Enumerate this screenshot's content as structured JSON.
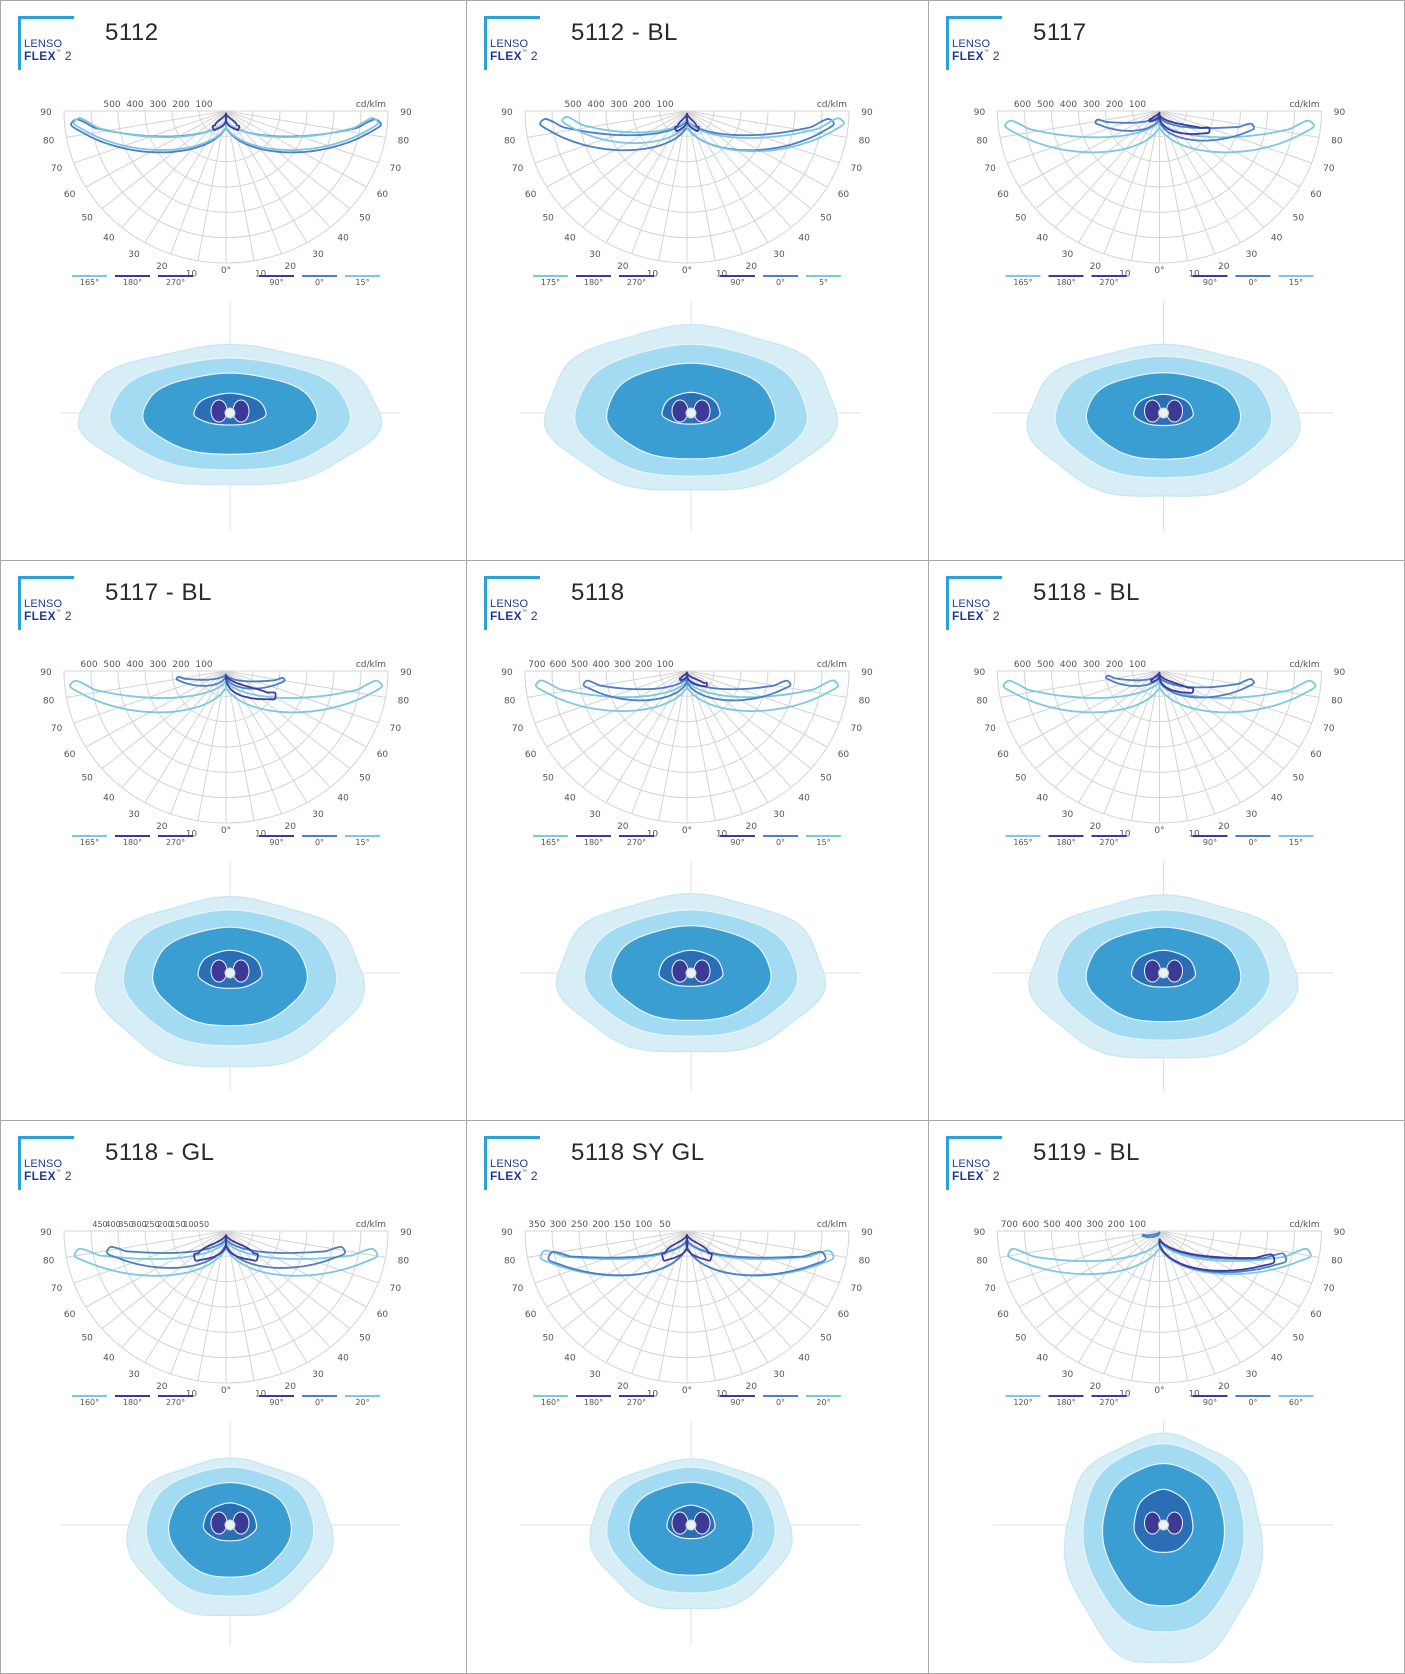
{
  "logo": {
    "line1": "LENSO",
    "line2": "FLEX",
    "tm": "™",
    "suffix": "2"
  },
  "colors": {
    "grid": "#d4d4d4",
    "label": "#555555",
    "light": "#7cc8e2",
    "mid": "#4a7fc4",
    "dark": "#3d3a9e",
    "iso_outer": "#d7eef7",
    "iso_2": "#a3dcf2",
    "iso_3": "#3a9ed3",
    "iso_4": "#2a6fb5",
    "iso_5": "#3c3a95"
  },
  "common": {
    "unit": "cd/klm",
    "angle_left": [
      "90",
      "80",
      "70",
      "60",
      "50",
      "40",
      "30",
      "20",
      "10"
    ],
    "angle_right": [
      "90",
      "80",
      "70",
      "60",
      "50",
      "40",
      "30",
      "20",
      "10"
    ],
    "zero": "0°"
  },
  "cells": [
    {
      "title": "5112",
      "intensity": [
        "500",
        "400",
        "300",
        "200",
        "100"
      ],
      "planes": [
        "165°",
        "180°",
        "270°",
        "90°",
        "0°",
        "15°"
      ]
    },
    {
      "title": "5112 - BL",
      "intensity": [
        "500",
        "400",
        "300",
        "200",
        "100"
      ],
      "planes": [
        "175°",
        "180°",
        "270°",
        "90°",
        "0°",
        "5°"
      ]
    },
    {
      "title": "5117",
      "intensity": [
        "600",
        "500",
        "400",
        "300",
        "200",
        "100"
      ],
      "planes": [
        "165°",
        "180°",
        "270°",
        "90°",
        "0°",
        "15°"
      ]
    },
    {
      "title": "5117 - BL",
      "intensity": [
        "600",
        "500",
        "400",
        "300",
        "200",
        "100"
      ],
      "planes": [
        "165°",
        "180°",
        "270°",
        "90°",
        "0°",
        "15°"
      ]
    },
    {
      "title": "5118",
      "intensity": [
        "700",
        "600",
        "500",
        "400",
        "300",
        "200",
        "100"
      ],
      "planes": [
        "165°",
        "180°",
        "270°",
        "90°",
        "0°",
        "15°"
      ]
    },
    {
      "title": "5118 - BL",
      "intensity": [
        "600",
        "500",
        "400",
        "300",
        "200",
        "100"
      ],
      "planes": [
        "165°",
        "180°",
        "270°",
        "90°",
        "0°",
        "15°"
      ]
    },
    {
      "title": "5118 - GL",
      "intensity": [
        "450",
        "400",
        "350",
        "300",
        "250",
        "200",
        "150",
        "100",
        "50"
      ],
      "planes": [
        "160°",
        "180°",
        "270°",
        "90°",
        "0°",
        "20°"
      ]
    },
    {
      "title": "5118 SY GL",
      "intensity": [
        "350",
        "300",
        "250",
        "200",
        "150",
        "100",
        "50"
      ],
      "planes": [
        "160°",
        "180°",
        "270°",
        "90°",
        "0°",
        "20°"
      ]
    },
    {
      "title": "5119 - BL",
      "intensity": [
        "700",
        "600",
        "500",
        "400",
        "300",
        "200",
        "100"
      ],
      "planes": [
        "120°",
        "180°",
        "270°",
        "90°",
        "0°",
        "60°"
      ]
    }
  ]
}
